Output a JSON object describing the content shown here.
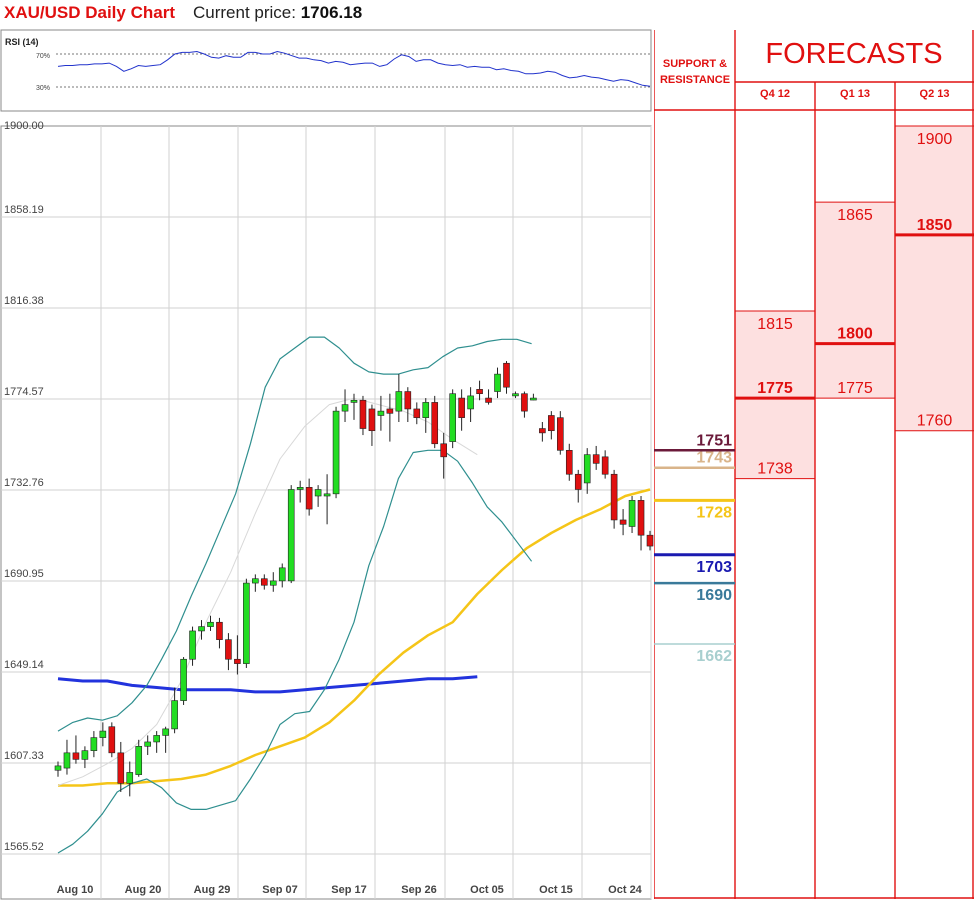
{
  "header": {
    "pair_title": "XAU/USD Daily Chart",
    "price_label": "Current price:",
    "price_value": "1706.18"
  },
  "rsi": {
    "label": "RSI (14)",
    "upper_label": "70%",
    "lower_label": "30%",
    "values": [
      55,
      56,
      56,
      57,
      57,
      58,
      58,
      59,
      55,
      49,
      52,
      56,
      55,
      56,
      57,
      63,
      70,
      72,
      72,
      73,
      70,
      66,
      65,
      68,
      66,
      66,
      72,
      72,
      70,
      70,
      73,
      71,
      68,
      65,
      65,
      63,
      62,
      59,
      61,
      60,
      57,
      58,
      59,
      59,
      55,
      57,
      64,
      69,
      67,
      61,
      63,
      63,
      59,
      57,
      56,
      57,
      54,
      55,
      54,
      54,
      51,
      52,
      50,
      49,
      46,
      46,
      47,
      49,
      48,
      44,
      41,
      42,
      44,
      42,
      41,
      39,
      37,
      39,
      38,
      35,
      32,
      31
    ]
  },
  "chart_data": {
    "type": "candlestick",
    "title": "XAU/USD Daily Chart",
    "y_axis": {
      "min": 1565.52,
      "max": 1900.0,
      "tick_labels": [
        "1900.00",
        "1858.19",
        "1816.38",
        "1774.57",
        "1732.76",
        "1690.95",
        "1649.14",
        "1607.33",
        "1565.52"
      ]
    },
    "x_axis": {
      "tick_labels": [
        "Aug 10",
        "Aug 20",
        "Aug 29",
        "Sep 07",
        "Sep 17",
        "Sep 26",
        "Oct 05",
        "Oct 15",
        "Oct 24"
      ]
    },
    "grid": true,
    "candles": [
      {
        "o": 1604,
        "h": 1608,
        "l": 1601,
        "c": 1606
      },
      {
        "o": 1605,
        "h": 1618,
        "l": 1602,
        "c": 1612
      },
      {
        "o": 1612,
        "h": 1620,
        "l": 1607,
        "c": 1609
      },
      {
        "o": 1609,
        "h": 1615,
        "l": 1605,
        "c": 1613
      },
      {
        "o": 1613,
        "h": 1622,
        "l": 1610,
        "c": 1619
      },
      {
        "o": 1619,
        "h": 1626,
        "l": 1615,
        "c": 1622
      },
      {
        "o": 1624,
        "h": 1626,
        "l": 1610,
        "c": 1612
      },
      {
        "o": 1612,
        "h": 1617,
        "l": 1594,
        "c": 1598
      },
      {
        "o": 1598,
        "h": 1608,
        "l": 1592,
        "c": 1603
      },
      {
        "o": 1602,
        "h": 1618,
        "l": 1601,
        "c": 1615
      },
      {
        "o": 1615,
        "h": 1620,
        "l": 1611,
        "c": 1617
      },
      {
        "o": 1617,
        "h": 1622,
        "l": 1612,
        "c": 1620
      },
      {
        "o": 1620,
        "h": 1624,
        "l": 1612,
        "c": 1623
      },
      {
        "o": 1623,
        "h": 1642,
        "l": 1621,
        "c": 1636
      },
      {
        "o": 1636,
        "h": 1656,
        "l": 1634,
        "c": 1655
      },
      {
        "o": 1655,
        "h": 1670,
        "l": 1652,
        "c": 1668
      },
      {
        "o": 1668,
        "h": 1673,
        "l": 1664,
        "c": 1670
      },
      {
        "o": 1670,
        "h": 1675,
        "l": 1668,
        "c": 1672
      },
      {
        "o": 1672,
        "h": 1674,
        "l": 1660,
        "c": 1664
      },
      {
        "o": 1664,
        "h": 1667,
        "l": 1650,
        "c": 1655
      },
      {
        "o": 1655,
        "h": 1666,
        "l": 1648,
        "c": 1653
      },
      {
        "o": 1653,
        "h": 1692,
        "l": 1651,
        "c": 1690
      },
      {
        "o": 1690,
        "h": 1694,
        "l": 1686,
        "c": 1692
      },
      {
        "o": 1692,
        "h": 1694,
        "l": 1687,
        "c": 1689
      },
      {
        "o": 1689,
        "h": 1695,
        "l": 1686,
        "c": 1691
      },
      {
        "o": 1691,
        "h": 1699,
        "l": 1688,
        "c": 1697
      },
      {
        "o": 1691,
        "h": 1735,
        "l": 1690,
        "c": 1733
      },
      {
        "o": 1733,
        "h": 1737,
        "l": 1727,
        "c": 1734
      },
      {
        "o": 1734,
        "h": 1738,
        "l": 1721,
        "c": 1724
      },
      {
        "o": 1730,
        "h": 1735,
        "l": 1725,
        "c": 1733
      },
      {
        "o": 1730,
        "h": 1740,
        "l": 1717,
        "c": 1731
      },
      {
        "o": 1731,
        "h": 1771,
        "l": 1729,
        "c": 1769
      },
      {
        "o": 1769,
        "h": 1779,
        "l": 1764,
        "c": 1772
      },
      {
        "o": 1773,
        "h": 1777,
        "l": 1765,
        "c": 1774
      },
      {
        "o": 1774,
        "h": 1776,
        "l": 1758,
        "c": 1761
      },
      {
        "o": 1770,
        "h": 1772,
        "l": 1753,
        "c": 1760
      },
      {
        "o": 1767,
        "h": 1776,
        "l": 1760,
        "c": 1769
      },
      {
        "o": 1770,
        "h": 1777,
        "l": 1755,
        "c": 1768
      },
      {
        "o": 1769,
        "h": 1786,
        "l": 1764,
        "c": 1778
      },
      {
        "o": 1778,
        "h": 1780,
        "l": 1764,
        "c": 1770
      },
      {
        "o": 1770,
        "h": 1773,
        "l": 1763,
        "c": 1766
      },
      {
        "o": 1766,
        "h": 1775,
        "l": 1759,
        "c": 1773
      },
      {
        "o": 1773,
        "h": 1776,
        "l": 1752,
        "c": 1754
      },
      {
        "o": 1754,
        "h": 1759,
        "l": 1738,
        "c": 1748
      },
      {
        "o": 1755,
        "h": 1779,
        "l": 1752,
        "c": 1777
      },
      {
        "o": 1775,
        "h": 1779,
        "l": 1760,
        "c": 1766
      },
      {
        "o": 1770,
        "h": 1780,
        "l": 1764,
        "c": 1776
      },
      {
        "o": 1779,
        "h": 1783,
        "l": 1774,
        "c": 1777
      },
      {
        "o": 1775,
        "h": 1779,
        "l": 1772,
        "c": 1773
      },
      {
        "o": 1778,
        "h": 1789,
        "l": 1775,
        "c": 1786
      },
      {
        "o": 1791,
        "h": 1792,
        "l": 1777,
        "c": 1780
      },
      {
        "o": 1776,
        "h": 1778,
        "l": 1775,
        "c": 1777
      },
      {
        "o": 1777,
        "h": 1778,
        "l": 1766,
        "c": 1769
      },
      {
        "o": 1775,
        "h": 1777,
        "l": 1774,
        "c": 1775
      },
      {
        "o": 1761,
        "h": 1764,
        "l": 1755,
        "c": 1759
      },
      {
        "o": 1767,
        "h": 1769,
        "l": 1756,
        "c": 1760
      },
      {
        "o": 1766,
        "h": 1769,
        "l": 1749,
        "c": 1751
      },
      {
        "o": 1751,
        "h": 1754,
        "l": 1737,
        "c": 1740
      },
      {
        "o": 1740,
        "h": 1742,
        "l": 1727,
        "c": 1733
      },
      {
        "o": 1736,
        "h": 1752,
        "l": 1731,
        "c": 1749
      },
      {
        "o": 1749,
        "h": 1753,
        "l": 1742,
        "c": 1745
      },
      {
        "o": 1748,
        "h": 1751,
        "l": 1738,
        "c": 1740
      },
      {
        "o": 1740,
        "h": 1742,
        "l": 1715,
        "c": 1719
      },
      {
        "o": 1719,
        "h": 1724,
        "l": 1712,
        "c": 1717
      },
      {
        "o": 1716,
        "h": 1730,
        "l": 1713,
        "c": 1728
      },
      {
        "o": 1728,
        "h": 1730,
        "l": 1705,
        "c": 1712
      },
      {
        "o": 1712,
        "h": 1714,
        "l": 1705,
        "c": 1707
      }
    ],
    "series": [
      {
        "name": "",
        "color": "#2233dd",
        "points": [
          [
            0,
            1646
          ],
          [
            10,
            1645
          ],
          [
            20,
            1645
          ],
          [
            30,
            1643
          ],
          [
            40,
            1642
          ],
          [
            50,
            1641
          ],
          [
            60,
            1641
          ],
          [
            70,
            1641
          ],
          [
            80,
            1640
          ],
          [
            90,
            1640
          ],
          [
            100,
            1641
          ],
          [
            110,
            1642
          ],
          [
            120,
            1643
          ],
          [
            130,
            1644
          ],
          [
            140,
            1645
          ],
          [
            150,
            1646
          ],
          [
            160,
            1646
          ],
          [
            170,
            1647
          ]
        ]
      },
      {
        "name": "",
        "color": "#f5c518",
        "points": [
          [
            0,
            1597
          ],
          [
            10,
            1597
          ],
          [
            20,
            1598
          ],
          [
            30,
            1598
          ],
          [
            40,
            1599
          ],
          [
            50,
            1600
          ],
          [
            60,
            1602
          ],
          [
            70,
            1606
          ],
          [
            80,
            1611
          ],
          [
            90,
            1615
          ],
          [
            100,
            1619
          ],
          [
            110,
            1626
          ],
          [
            120,
            1636
          ],
          [
            130,
            1648
          ],
          [
            140,
            1658
          ],
          [
            150,
            1666
          ],
          [
            160,
            1672
          ],
          [
            170,
            1685
          ],
          [
            180,
            1696
          ],
          [
            190,
            1706
          ],
          [
            200,
            1713
          ],
          [
            210,
            1719
          ],
          [
            220,
            1724
          ],
          [
            230,
            1730
          ],
          [
            240,
            1733
          ]
        ]
      },
      {
        "name": "",
        "color": "#2f8f8f",
        "points": [
          [
            0,
            1622
          ],
          [
            6,
            1626
          ],
          [
            12,
            1628
          ],
          [
            18,
            1627
          ],
          [
            24,
            1629
          ],
          [
            30,
            1635
          ],
          [
            36,
            1643
          ],
          [
            42,
            1655
          ],
          [
            48,
            1668
          ],
          [
            54,
            1684
          ],
          [
            60,
            1699
          ],
          [
            66,
            1715
          ],
          [
            72,
            1731
          ],
          [
            78,
            1754
          ],
          [
            84,
            1780
          ],
          [
            90,
            1793
          ],
          [
            96,
            1798
          ],
          [
            102,
            1803
          ],
          [
            108,
            1803
          ],
          [
            114,
            1798
          ],
          [
            120,
            1791
          ],
          [
            126,
            1787
          ],
          [
            132,
            1786
          ],
          [
            138,
            1786
          ],
          [
            144,
            1788
          ],
          [
            150,
            1789
          ],
          [
            156,
            1794
          ],
          [
            162,
            1798
          ],
          [
            168,
            1799
          ],
          [
            174,
            1801
          ],
          [
            180,
            1802
          ],
          [
            186,
            1802
          ],
          [
            192,
            1800
          ]
        ]
      },
      {
        "name": "",
        "color": "#2f8f8f",
        "points": [
          [
            0,
            1566
          ],
          [
            6,
            1570
          ],
          [
            12,
            1576
          ],
          [
            18,
            1584
          ],
          [
            24,
            1594
          ],
          [
            30,
            1598
          ],
          [
            36,
            1600
          ],
          [
            42,
            1596
          ],
          [
            48,
            1589
          ],
          [
            54,
            1586
          ],
          [
            60,
            1586
          ],
          [
            66,
            1588
          ],
          [
            72,
            1590
          ],
          [
            78,
            1600
          ],
          [
            84,
            1611
          ],
          [
            90,
            1625
          ],
          [
            96,
            1630
          ],
          [
            102,
            1631
          ],
          [
            108,
            1641
          ],
          [
            114,
            1655
          ],
          [
            120,
            1672
          ],
          [
            126,
            1698
          ],
          [
            132,
            1716
          ],
          [
            138,
            1738
          ],
          [
            144,
            1750
          ],
          [
            150,
            1751
          ],
          [
            156,
            1751
          ],
          [
            162,
            1746
          ],
          [
            168,
            1736
          ],
          [
            174,
            1725
          ],
          [
            180,
            1718
          ],
          [
            186,
            1709
          ],
          [
            192,
            1700
          ]
        ]
      },
      {
        "name": "",
        "color": "#d8d8d8",
        "points": [
          [
            0,
            1597
          ],
          [
            10,
            1601
          ],
          [
            20,
            1607
          ],
          [
            30,
            1614
          ],
          [
            40,
            1625
          ],
          [
            50,
            1645
          ],
          [
            60,
            1672
          ],
          [
            70,
            1695
          ],
          [
            80,
            1722
          ],
          [
            90,
            1747
          ],
          [
            100,
            1762
          ],
          [
            110,
            1772
          ],
          [
            120,
            1775
          ],
          [
            130,
            1772
          ],
          [
            140,
            1769
          ],
          [
            150,
            1764
          ],
          [
            160,
            1756
          ],
          [
            170,
            1749
          ]
        ]
      }
    ]
  },
  "sr_panel": {
    "title": "SUPPORT & RESISTANCE",
    "levels": [
      {
        "value": "1751",
        "price": 1751,
        "color": "#6b1a3a"
      },
      {
        "value": "1743",
        "price": 1743,
        "color": "#d9b48a"
      },
      {
        "value": "1728",
        "price": 1728,
        "color": "#f5c518"
      },
      {
        "value": "1703",
        "price": 1703,
        "color": "#1a1ab0"
      },
      {
        "value": "1690",
        "price": 1690,
        "color": "#3a7a9a"
      },
      {
        "value": "1662",
        "price": 1662,
        "color": "#a8cfcf"
      }
    ]
  },
  "forecasts": {
    "title": "FORECASTS",
    "accent": "#e01010",
    "columns": [
      {
        "label": "Q4 12",
        "high": "1815",
        "mid": "1775",
        "low": "1738",
        "hp": 1815,
        "mp": 1775,
        "lp": 1738
      },
      {
        "label": "Q1 13",
        "high": "1865",
        "mid": "1800",
        "low": "1775",
        "hp": 1865,
        "mp": 1800,
        "lp": 1775
      },
      {
        "label": "Q2 13",
        "high": "1900",
        "mid": "1850",
        "low": "1760",
        "hp": 1900,
        "mp": 1850,
        "lp": 1760
      }
    ]
  }
}
